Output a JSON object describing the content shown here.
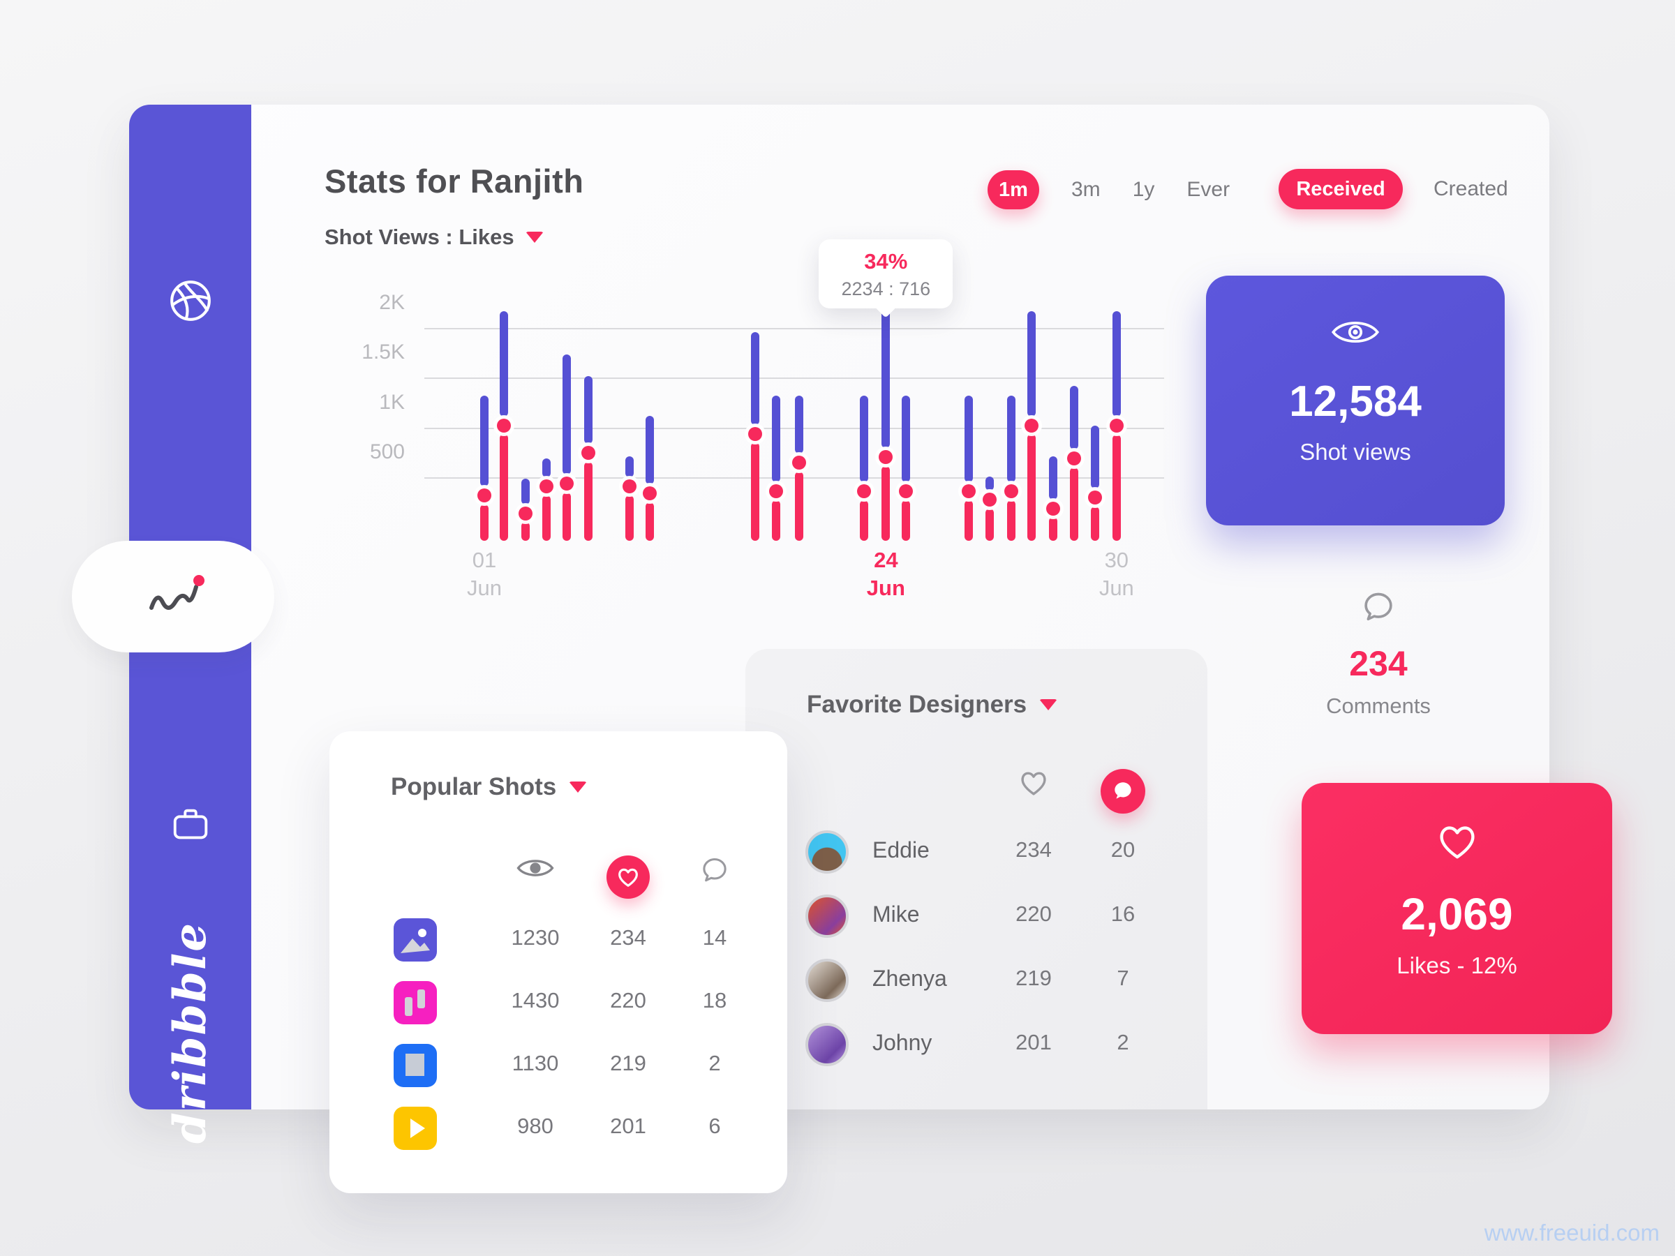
{
  "page": {
    "watermark": "www.freeuid.com"
  },
  "sidebar": {
    "brand": "dribbble",
    "items": [
      {
        "name": "dribbble-logo"
      },
      {
        "name": "shots"
      },
      {
        "name": "activity",
        "active": true
      },
      {
        "name": "projects"
      }
    ]
  },
  "header": {
    "title": "Stats for Ranjith",
    "subtitle": "Shot Views : Likes"
  },
  "filters": {
    "period": [
      {
        "label": "1m",
        "active": true
      },
      {
        "label": "3m",
        "active": false
      },
      {
        "label": "1y",
        "active": false
      },
      {
        "label": "Ever",
        "active": false
      }
    ],
    "type": [
      {
        "label": "Received",
        "active": true
      },
      {
        "label": "Created",
        "active": false
      }
    ]
  },
  "chart_data": {
    "type": "bar",
    "title": "Shot Views : Likes",
    "xlabel": "",
    "ylabel": "",
    "ylim": [
      0,
      2400
    ],
    "grid": true,
    "colors": {
      "views": "#5550d4",
      "likes": "#f7295c"
    },
    "yticks": [
      {
        "label": "2K",
        "value": 2000
      },
      {
        "label": "1.5K",
        "value": 1500
      },
      {
        "label": "1K",
        "value": 1000
      },
      {
        "label": "500",
        "value": 500
      }
    ],
    "series": [
      {
        "name": "Shot Views",
        "color": "#5550d4"
      },
      {
        "name": "Likes",
        "color": "#f7295c"
      }
    ],
    "bars": [
      {
        "x": 5.3,
        "views": 1330,
        "likes": 330
      },
      {
        "x": 8.0,
        "views": 2180,
        "likes": 1035
      },
      {
        "x": 11.1,
        "views": 500,
        "likes": 150
      },
      {
        "x": 14.0,
        "views": 700,
        "likes": 420
      },
      {
        "x": 16.9,
        "views": 1750,
        "likes": 450
      },
      {
        "x": 19.9,
        "views": 1530,
        "likes": 760
      },
      {
        "x": 25.7,
        "views": 720,
        "likes": 420
      },
      {
        "x": 28.5,
        "views": 1130,
        "likes": 350
      },
      {
        "x": 43.3,
        "views": 1970,
        "likes": 950
      },
      {
        "x": 46.3,
        "views": 1330,
        "likes": 370
      },
      {
        "x": 49.5,
        "views": 1330,
        "likes": 660
      },
      {
        "x": 58.6,
        "views": 1330,
        "likes": 370
      },
      {
        "x": 61.7,
        "views": 2234,
        "likes": 716
      },
      {
        "x": 64.5,
        "views": 1330,
        "likes": 370
      },
      {
        "x": 73.3,
        "views": 1330,
        "likes": 370
      },
      {
        "x": 76.3,
        "views": 520,
        "likes": 290
      },
      {
        "x": 79.3,
        "views": 1330,
        "likes": 370
      },
      {
        "x": 82.2,
        "views": 2180,
        "likes": 1035
      },
      {
        "x": 85.2,
        "views": 720,
        "likes": 200
      },
      {
        "x": 88.1,
        "views": 1430,
        "likes": 700
      },
      {
        "x": 91.1,
        "views": 1030,
        "likes": 310
      },
      {
        "x": 94.1,
        "views": 2180,
        "likes": 1030
      }
    ],
    "xticks": [
      {
        "bar": 0,
        "line1": "01",
        "line2": "Jun",
        "highlight": false
      },
      {
        "bar": 12,
        "line1": "24",
        "line2": "Jun",
        "highlight": true
      },
      {
        "bar": 21,
        "line1": "30",
        "line2": "Jun",
        "highlight": false
      }
    ],
    "tooltip": {
      "bar": 12,
      "percent": "34%",
      "detail": "2234 : 716"
    }
  },
  "cards": {
    "shot_views": {
      "value": "12,584",
      "label": "Shot views"
    },
    "comments": {
      "value": "234",
      "label": "Comments"
    },
    "likes": {
      "value": "2,069",
      "label": "Likes - 12%"
    }
  },
  "favorite_designers": {
    "title": "Favorite Designers",
    "columns": [
      "likes",
      "comments"
    ],
    "rows": [
      {
        "name": "Eddie",
        "likes": "234",
        "comments": "20",
        "avatar": {
          "c1": "#42c5f1",
          "c2": "#7d5f49"
        }
      },
      {
        "name": "Mike",
        "likes": "220",
        "comments": "16",
        "avatar": {
          "c1": "#e0552e",
          "c2": "#8a3f9e"
        }
      },
      {
        "name": "Zhenya",
        "likes": "219",
        "comments": "7",
        "avatar": {
          "c1": "#e6dfd6",
          "c2": "#7d6a5a"
        }
      },
      {
        "name": "Johny",
        "likes": "201",
        "comments": "2",
        "avatar": {
          "c1": "#b494dd",
          "c2": "#6d44a8"
        }
      }
    ]
  },
  "popular_shots": {
    "title": "Popular Shots",
    "columns": [
      "views",
      "likes",
      "comments"
    ],
    "rows": [
      {
        "thumb": {
          "bg": "#5b55d8",
          "glyph": "image"
        },
        "views": "1230",
        "likes": "234",
        "comments": "14"
      },
      {
        "thumb": {
          "bg": "#f620c0",
          "glyph": "panels"
        },
        "views": "1430",
        "likes": "220",
        "comments": "18"
      },
      {
        "thumb": {
          "bg": "#1e6ef5",
          "glyph": "square"
        },
        "views": "1130",
        "likes": "219",
        "comments": "2"
      },
      {
        "thumb": {
          "bg": "#fdc500",
          "glyph": "play"
        },
        "views": "980",
        "likes": "201",
        "comments": "6"
      }
    ]
  }
}
